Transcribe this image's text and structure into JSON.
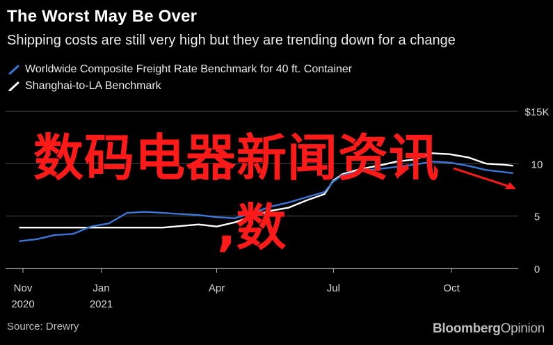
{
  "chart_data": {
    "type": "line",
    "title": "The Worst May Be Over",
    "subtitle": "Shipping costs are still very high but they are trending down for a change",
    "source": "Source: Drewry",
    "brand": {
      "bold": "Bloomberg",
      "light": "Opinion"
    },
    "ylim": [
      0,
      15
    ],
    "y_ticks": [
      {
        "value": 0,
        "label": "0"
      },
      {
        "value": 5,
        "label": "5"
      },
      {
        "value": 10,
        "label": "10"
      },
      {
        "value": 15,
        "label": "$15K"
      }
    ],
    "x_domain": [
      "2020-11-01",
      "2021-11-22"
    ],
    "x_ticks": [
      {
        "date": "2020-11-01",
        "line1": "Nov",
        "line2": "2020"
      },
      {
        "date": "2021-01-01",
        "line1": "Jan",
        "line2": "2021"
      },
      {
        "date": "2021-04-01",
        "line1": "Apr",
        "line2": ""
      },
      {
        "date": "2021-07-01",
        "line1": "Jul",
        "line2": ""
      },
      {
        "date": "2021-10-01",
        "line1": "Oct",
        "line2": ""
      }
    ],
    "grid": true,
    "legend_position": "top-left",
    "series": [
      {
        "name": "Worldwide Composite Freight Rate Benchmark for 40 ft. Container",
        "color": "#3a78d8",
        "points": [
          [
            "2020-10-29",
            2.6
          ],
          [
            "2020-11-12",
            2.8
          ],
          [
            "2020-11-26",
            3.2
          ],
          [
            "2020-12-10",
            3.3
          ],
          [
            "2020-12-24",
            4.0
          ],
          [
            "2021-01-07",
            4.3
          ],
          [
            "2021-01-21",
            5.3
          ],
          [
            "2021-02-04",
            5.4
          ],
          [
            "2021-02-18",
            5.3
          ],
          [
            "2021-03-04",
            5.2
          ],
          [
            "2021-03-18",
            5.1
          ],
          [
            "2021-04-01",
            4.9
          ],
          [
            "2021-04-15",
            4.8
          ],
          [
            "2021-04-29",
            5.3
          ],
          [
            "2021-05-13",
            5.9
          ],
          [
            "2021-05-27",
            6.3
          ],
          [
            "2021-06-10",
            6.8
          ],
          [
            "2021-06-24",
            7.3
          ],
          [
            "2021-07-01",
            8.3
          ],
          [
            "2021-07-08",
            8.9
          ],
          [
            "2021-07-22",
            9.3
          ],
          [
            "2021-08-05",
            9.5
          ],
          [
            "2021-08-19",
            9.7
          ],
          [
            "2021-09-02",
            9.9
          ],
          [
            "2021-09-16",
            10.2
          ],
          [
            "2021-09-30",
            10.1
          ],
          [
            "2021-10-14",
            9.8
          ],
          [
            "2021-10-28",
            9.4
          ],
          [
            "2021-11-11",
            9.2
          ],
          [
            "2021-11-18",
            9.1
          ]
        ]
      },
      {
        "name": "Shanghai-to-LA Benchmark",
        "color": "#ffffff",
        "points": [
          [
            "2020-10-29",
            3.9
          ],
          [
            "2020-11-26",
            3.9
          ],
          [
            "2020-12-24",
            3.9
          ],
          [
            "2021-01-21",
            3.9
          ],
          [
            "2021-02-18",
            3.9
          ],
          [
            "2021-03-18",
            4.2
          ],
          [
            "2021-04-01",
            4.0
          ],
          [
            "2021-04-15",
            4.4
          ],
          [
            "2021-04-29",
            5.0
          ],
          [
            "2021-05-13",
            5.5
          ],
          [
            "2021-05-27",
            5.8
          ],
          [
            "2021-06-10",
            6.5
          ],
          [
            "2021-06-24",
            7.1
          ],
          [
            "2021-07-01",
            8.4
          ],
          [
            "2021-07-08",
            9.0
          ],
          [
            "2021-07-22",
            9.5
          ],
          [
            "2021-08-05",
            9.8
          ],
          [
            "2021-08-19",
            10.2
          ],
          [
            "2021-09-02",
            10.4
          ],
          [
            "2021-09-16",
            11.0
          ],
          [
            "2021-09-30",
            10.9
          ],
          [
            "2021-10-14",
            10.6
          ],
          [
            "2021-10-28",
            10.0
          ],
          [
            "2021-11-11",
            9.9
          ],
          [
            "2021-11-18",
            9.8
          ]
        ]
      }
    ]
  },
  "overlay": {
    "line1": "数码电器新闻资讯",
    "line2": ",数"
  }
}
